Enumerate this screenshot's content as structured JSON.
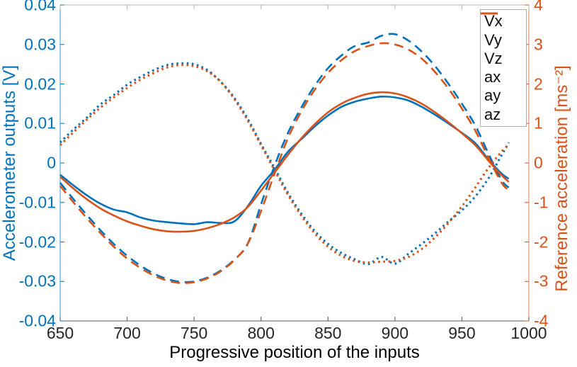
{
  "figure": {
    "background": "#ffffff",
    "blue": "#0072BD",
    "orange": "#D95319",
    "x_tick_color": "#262626",
    "box_top_color": "#b3b3b3",
    "box_bottom_color": "#595959"
  },
  "axes": {
    "x": {
      "label": "Progressive position of the inputs",
      "range": [
        650,
        1000
      ],
      "ticks": [
        "650",
        "700",
        "750",
        "800",
        "850",
        "900",
        "950",
        "1000"
      ]
    },
    "y_left": {
      "label": "Accelerometer outputs [V]",
      "range": [
        -0.04,
        0.04
      ],
      "ticks": [
        "0.04",
        "0.03",
        "0.02",
        "0.01",
        "0",
        "-0.01",
        "-0.02",
        "-0.03",
        "-0.04"
      ],
      "color": "#0072BD"
    },
    "y_right": {
      "label": "Reference acceleration [ms⁻²]",
      "range": [
        -4,
        4
      ],
      "ticks": [
        "4",
        "3",
        "2",
        "1",
        "0",
        "-1",
        "-2",
        "-3",
        "-4"
      ],
      "color": "#D95319"
    }
  },
  "legend": {
    "position": "northeast",
    "entries": [
      "Vx",
      "Vy",
      "Vz",
      "ax",
      "ay",
      "az"
    ]
  },
  "chart_data": {
    "type": "line",
    "grid": false,
    "x": [
      650,
      660,
      670,
      680,
      690,
      700,
      710,
      720,
      730,
      740,
      750,
      760,
      770,
      780,
      790,
      800,
      810,
      820,
      830,
      840,
      850,
      860,
      870,
      880,
      890,
      900,
      910,
      920,
      930,
      940,
      950,
      960,
      970,
      980,
      985
    ],
    "series": [
      {
        "name": "Vx",
        "axis": "left",
        "unit": "V",
        "color": "#0072BD",
        "style": "solid",
        "values": [
          -0.003,
          -0.0057,
          -0.0082,
          -0.0103,
          -0.0118,
          -0.0125,
          -0.0138,
          -0.0146,
          -0.015,
          -0.0153,
          -0.0155,
          -0.015,
          -0.0152,
          -0.0148,
          -0.011,
          -0.0058,
          -0.0018,
          0.0028,
          0.006,
          0.0092,
          0.012,
          0.0142,
          0.0155,
          0.0163,
          0.0168,
          0.0166,
          0.0158,
          0.0142,
          0.0122,
          0.01,
          0.0076,
          0.005,
          0.0008,
          -0.0028,
          -0.004
        ]
      },
      {
        "name": "Vy",
        "axis": "left",
        "unit": "V",
        "color": "#0072BD",
        "style": "dashed",
        "values": [
          -0.005,
          -0.0092,
          -0.0132,
          -0.017,
          -0.0205,
          -0.0235,
          -0.026,
          -0.028,
          -0.0294,
          -0.0301,
          -0.03,
          -0.029,
          -0.0272,
          -0.0245,
          -0.0205,
          -0.0105,
          -0.0008,
          0.0075,
          0.014,
          0.0195,
          0.024,
          0.0272,
          0.0296,
          0.0305,
          0.0322,
          0.0326,
          0.031,
          0.0282,
          0.0245,
          0.02,
          0.015,
          0.0095,
          0.0022,
          -0.0045,
          -0.0062
        ]
      },
      {
        "name": "Vz",
        "axis": "left",
        "unit": "V",
        "color": "#0072BD",
        "style": "dotted",
        "values": [
          0.0052,
          0.0085,
          0.0115,
          0.0148,
          0.0172,
          0.0198,
          0.0218,
          0.0235,
          0.0248,
          0.0252,
          0.025,
          0.0235,
          0.0205,
          0.0165,
          0.0112,
          0.0048,
          -0.0012,
          -0.0075,
          -0.0128,
          -0.0172,
          -0.0205,
          -0.0228,
          -0.0244,
          -0.0256,
          -0.0238,
          -0.0255,
          -0.023,
          -0.0205,
          -0.0178,
          -0.0148,
          -0.012,
          -0.0085,
          -0.0038,
          0.0022,
          0.0052
        ]
      },
      {
        "name": "ax",
        "axis": "right",
        "unit": "ms-2",
        "color": "#D95319",
        "style": "solid",
        "values": [
          -0.35,
          -0.65,
          -0.92,
          -1.15,
          -1.33,
          -1.48,
          -1.59,
          -1.68,
          -1.73,
          -1.74,
          -1.72,
          -1.65,
          -1.54,
          -1.38,
          -1.12,
          -0.7,
          -0.25,
          0.2,
          0.62,
          0.98,
          1.28,
          1.5,
          1.65,
          1.75,
          1.79,
          1.76,
          1.66,
          1.5,
          1.28,
          1.03,
          0.75,
          0.45,
          0.05,
          -0.32,
          -0.48
        ]
      },
      {
        "name": "ay",
        "axis": "right",
        "unit": "ms-2",
        "color": "#D95319",
        "style": "dashed",
        "values": [
          -0.58,
          -1.0,
          -1.4,
          -1.77,
          -2.12,
          -2.42,
          -2.66,
          -2.85,
          -2.98,
          -3.04,
          -3.02,
          -2.92,
          -2.74,
          -2.46,
          -2.05,
          -1.22,
          -0.28,
          0.62,
          1.3,
          1.85,
          2.28,
          2.6,
          2.83,
          2.96,
          3.03,
          3.0,
          2.87,
          2.64,
          2.3,
          1.88,
          1.38,
          0.82,
          0.12,
          -0.52,
          -0.68
        ]
      },
      {
        "name": "az",
        "axis": "right",
        "unit": "ms-2",
        "color": "#D95319",
        "style": "dotted",
        "values": [
          0.45,
          0.78,
          1.1,
          1.4,
          1.66,
          1.9,
          2.11,
          2.28,
          2.42,
          2.48,
          2.45,
          2.32,
          2.05,
          1.62,
          1.08,
          0.45,
          -0.18,
          -0.8,
          -1.33,
          -1.78,
          -2.12,
          -2.35,
          -2.48,
          -2.52,
          -2.5,
          -2.48,
          -2.38,
          -2.18,
          -1.88,
          -1.52,
          -1.1,
          -0.62,
          -0.12,
          0.3,
          0.45
        ]
      }
    ]
  }
}
